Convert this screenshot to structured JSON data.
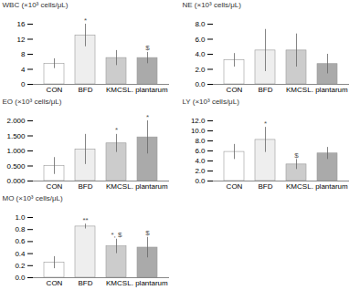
{
  "chart_data": [
    {
      "type": "bar",
      "ylabel": "WBC (×10³ cells/μL)",
      "categories": [
        "CON",
        "BFD",
        "KMCS",
        "L. plantarum"
      ],
      "values": [
        5.5,
        13.0,
        7.0,
        7.0
      ],
      "errors": [
        1.3,
        3.0,
        2.0,
        1.5
      ],
      "colors": [
        "#ffffff",
        "#eeeeee",
        "#cccccc",
        "#aaaaaa"
      ],
      "ylim": [
        0,
        16
      ],
      "yticks": [
        0,
        4,
        8,
        12,
        16
      ],
      "annotations": [
        {
          "category": "BFD",
          "text": "*"
        },
        {
          "category": "L. plantarum",
          "text": "$"
        }
      ]
    },
    {
      "type": "bar",
      "ylabel": "NE (×10³ cells/μL)",
      "categories": [
        "CON",
        "BFD",
        "KMCS",
        "L. plantarum"
      ],
      "values": [
        3.2,
        4.5,
        4.5,
        2.7
      ],
      "errors": [
        0.9,
        2.8,
        2.2,
        1.3
      ],
      "colors": [
        "#ffffff",
        "#eeeeee",
        "#cccccc",
        "#aaaaaa"
      ],
      "ylim": [
        0.0,
        8.0
      ],
      "yticks": [
        {
          "value": 0,
          "label": "0.0"
        },
        {
          "value": 2,
          "label": "2.0"
        },
        {
          "value": 4,
          "label": "4.0"
        },
        {
          "value": 6,
          "label": "6.0"
        },
        {
          "value": 8,
          "label": "8.0"
        }
      ],
      "annotations": []
    },
    {
      "type": "bar",
      "ylabel": "EO (×10³ cells/μL)",
      "categories": [
        "CON",
        "BFD",
        "KMCS",
        "L. plantarum"
      ],
      "values": [
        0.5,
        1.05,
        1.25,
        1.45
      ],
      "errors": [
        0.28,
        0.5,
        0.3,
        0.55
      ],
      "colors": [
        "#ffffff",
        "#eeeeee",
        "#cccccc",
        "#aaaaaa"
      ],
      "ylim": [
        0.0,
        2.0
      ],
      "yticks": [
        {
          "value": 0,
          "label": "0.000"
        },
        {
          "value": 0.5,
          "label": "0.500"
        },
        {
          "value": 1,
          "label": "1.000"
        },
        {
          "value": 1.5,
          "label": "1.500"
        },
        {
          "value": 2,
          "label": "2.000"
        }
      ],
      "annotations": [
        {
          "category": "KMCS",
          "text": "*"
        },
        {
          "category": "L. plantarum",
          "text": "*"
        }
      ]
    },
    {
      "type": "bar",
      "ylabel": "LY (×10³ cells/μL)",
      "categories": [
        "CON",
        "BFD",
        "KMCS",
        "L. plantarum"
      ],
      "values": [
        5.8,
        8.2,
        3.3,
        5.5
      ],
      "errors": [
        1.5,
        2.5,
        1.0,
        1.2
      ],
      "colors": [
        "#ffffff",
        "#eeeeee",
        "#cccccc",
        "#aaaaaa"
      ],
      "ylim": [
        0.0,
        12.0
      ],
      "yticks": [
        {
          "value": 0,
          "label": "0.0"
        },
        {
          "value": 2,
          "label": "2.0"
        },
        {
          "value": 4,
          "label": "4.0"
        },
        {
          "value": 6,
          "label": "6.0"
        },
        {
          "value": 8,
          "label": "8.0"
        },
        {
          "value": 10,
          "label": "10.0"
        },
        {
          "value": 12,
          "label": "12.0"
        }
      ],
      "annotations": [
        {
          "category": "BFD",
          "text": "*"
        },
        {
          "category": "KMCS",
          "text": "$"
        }
      ]
    },
    {
      "type": "bar",
      "ylabel": "MO (×10³ cells/μL)",
      "categories": [
        "CON",
        "BFD",
        "KMCS",
        "L. plantarum"
      ],
      "values": [
        0.25,
        0.85,
        0.52,
        0.5
      ],
      "errors": [
        0.1,
        0.04,
        0.12,
        0.17
      ],
      "colors": [
        "#ffffff",
        "#eeeeee",
        "#cccccc",
        "#aaaaaa"
      ],
      "ylim": [
        0.0,
        1.0
      ],
      "yticks": [
        {
          "value": 0,
          "label": "0.0"
        },
        0.2,
        0.4,
        0.6,
        0.8,
        {
          "value": 1,
          "label": "1.0"
        }
      ],
      "annotations": [
        {
          "category": "BFD",
          "text": "**"
        },
        {
          "category": "KMCS",
          "text": "*, $"
        },
        {
          "category": "L. plantarum",
          "text": "$"
        }
      ]
    }
  ]
}
